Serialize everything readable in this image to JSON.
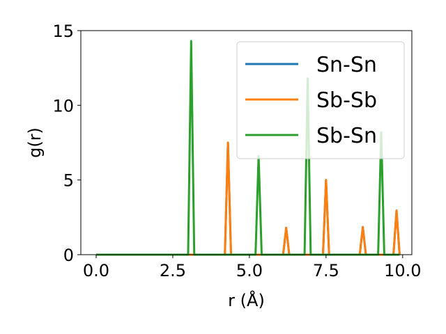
{
  "chart_data": {
    "type": "line",
    "title": "",
    "xlabel": "r (Å)",
    "ylabel": "g(r)",
    "xlim": [
      -0.5,
      10.3
    ],
    "ylim": [
      0,
      15
    ],
    "xticks": [
      0.0,
      2.5,
      5.0,
      7.5,
      10.0
    ],
    "xtick_labels": [
      "0.0",
      "2.5",
      "5.0",
      "7.5",
      "10.0"
    ],
    "yticks": [
      0,
      5,
      10,
      15
    ],
    "ytick_labels": [
      "0",
      "5",
      "10",
      "15"
    ],
    "grid": false,
    "legend_position": "top-right",
    "peak_halfwidth": 0.1,
    "series": [
      {
        "name": "Sn-Sn",
        "color": "#1f77b4",
        "peaks": [
          [
            4.3,
            7.5
          ],
          [
            6.2,
            1.8
          ],
          [
            7.5,
            5.0
          ],
          [
            8.7,
            1.85
          ],
          [
            9.8,
            2.95
          ]
        ]
      },
      {
        "name": "Sb-Sb",
        "color": "#ff7f0e",
        "peaks": [
          [
            4.3,
            7.5
          ],
          [
            6.2,
            1.8
          ],
          [
            7.5,
            5.0
          ],
          [
            8.7,
            1.85
          ],
          [
            9.8,
            2.95
          ]
        ]
      },
      {
        "name": "Sb-Sn",
        "color": "#2ca02c",
        "peaks": [
          [
            3.1,
            14.3
          ],
          [
            5.3,
            6.6
          ],
          [
            6.9,
            11.8
          ],
          [
            9.3,
            8.2
          ]
        ]
      }
    ]
  }
}
